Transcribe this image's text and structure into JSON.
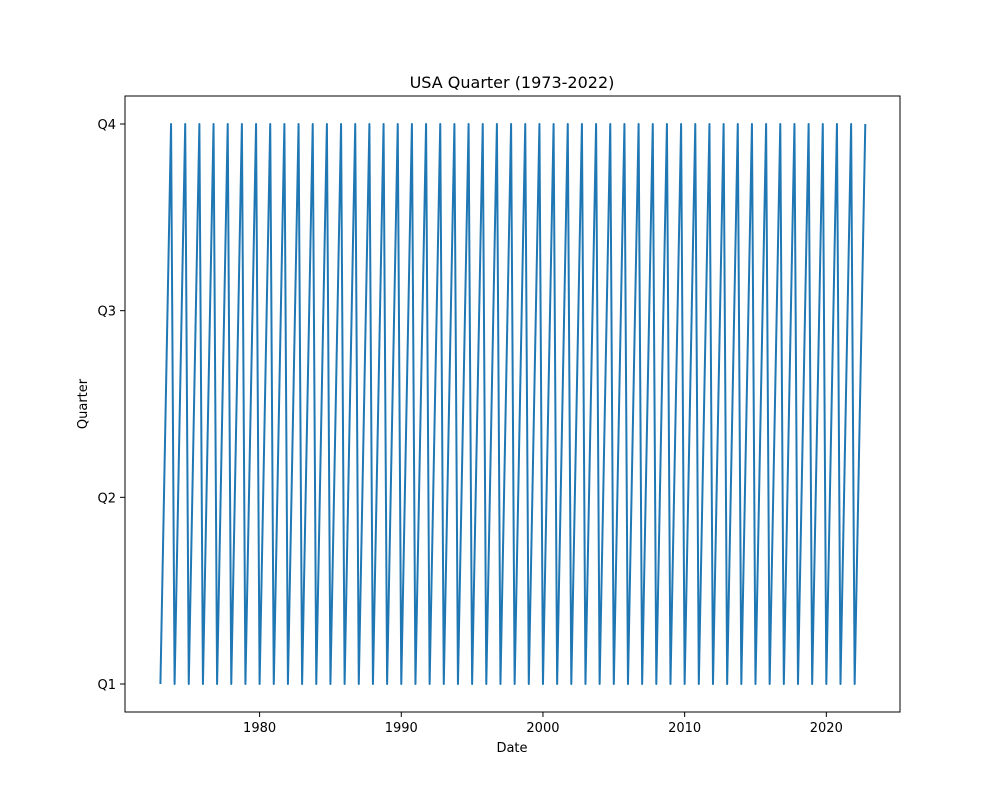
{
  "chart_data": {
    "type": "line",
    "title": "USA Quarter (1973-2022)",
    "xlabel": "Date",
    "ylabel": "Quarter",
    "series_color": "#1f77b4",
    "start_year": 1973,
    "end_year": 2022,
    "y_categories": [
      "Q1",
      "Q2",
      "Q3",
      "Q4"
    ],
    "y_values_per_year": [
      1,
      2,
      3,
      4
    ],
    "xlim": [
      1970.4,
      1962.2
    ],
    "x_ticks": [
      1980,
      1990,
      2000,
      2010,
      2020
    ],
    "x_tick_labels": [
      "1980",
      "1990",
      "2000",
      "2010",
      "2020"
    ],
    "y_ticks": [
      1,
      2,
      3,
      4
    ],
    "y_tick_labels": [
      "Q1",
      "Q2",
      "Q3",
      "Q4"
    ],
    "ylim": [
      0.85,
      4.15
    ],
    "grid": false,
    "legend": "none"
  }
}
